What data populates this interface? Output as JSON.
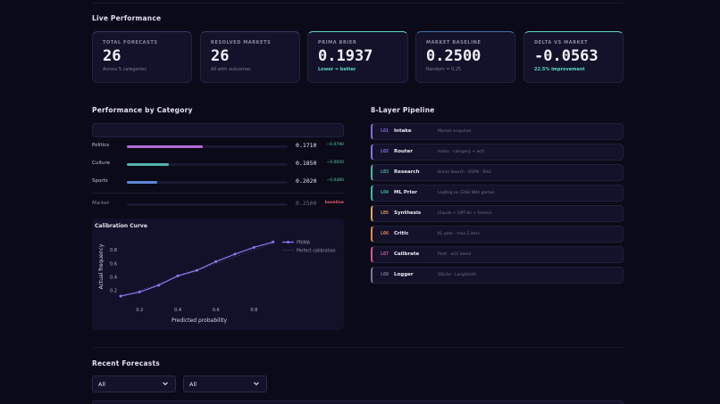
{
  "live": {
    "title": "Live Performance",
    "kpis": [
      {
        "label": "TOTAL FORECASTS",
        "value": "26",
        "sub": "Across 5 categories",
        "accent": "#3a3960"
      },
      {
        "label": "RESOLVED MARKETS",
        "value": "26",
        "sub": "All with outcomes",
        "accent": "#3a3960"
      },
      {
        "label": "PRIMA BRIER",
        "value": "0.1937",
        "sub": "Lower = better",
        "accent": "#5fd6c8"
      },
      {
        "label": "MARKET BASELINE",
        "value": "0.2500",
        "sub": "Random = 0.25",
        "accent": "#3d6fb0"
      },
      {
        "label": "DELTA VS MARKET",
        "value": "-0.0563",
        "sub": "22.5% improvement",
        "accent": "#5fd6c8"
      }
    ]
  },
  "category": {
    "title": "Performance by Category",
    "rows": [
      {
        "name": "Politics",
        "score": "0.1710",
        "delta": "−0.0790",
        "fill": 0.47,
        "color": "#b46ad6"
      },
      {
        "name": "Culture",
        "score": "0.1850",
        "delta": "−0.0650",
        "fill": 0.26,
        "color": "#4fb3a8"
      },
      {
        "name": "Sports",
        "score": "0.2020",
        "delta": "−0.0480",
        "fill": 0.19,
        "color": "#5b86d6"
      }
    ],
    "market": {
      "name": "Market",
      "score": "0.2500",
      "delta": "baseline"
    }
  },
  "calibration": {
    "title": "Calibration Curve",
    "xlabel": "Predicted probability",
    "ylabel": "Actual frequency",
    "legend": [
      "PRIMA",
      "Perfect calibration"
    ],
    "chart_data": {
      "type": "line",
      "x": [
        0.1,
        0.2,
        0.3,
        0.4,
        0.5,
        0.6,
        0.7,
        0.8,
        0.9
      ],
      "series": [
        {
          "name": "PRIMA",
          "values": [
            0.12,
            0.18,
            0.28,
            0.42,
            0.5,
            0.63,
            0.74,
            0.84,
            0.92
          ]
        },
        {
          "name": "Perfect calibration",
          "values": [
            0.1,
            0.2,
            0.3,
            0.4,
            0.5,
            0.6,
            0.7,
            0.8,
            0.9
          ]
        }
      ],
      "xticks": [
        "0.2",
        "0.4",
        "0.6",
        "0.8"
      ],
      "yticks": [
        "0.2",
        "0.4",
        "0.6",
        "0.8"
      ],
      "xlim": [
        0.1,
        0.92
      ],
      "ylim": [
        0.08,
        0.95
      ]
    }
  },
  "pipeline": {
    "title": "8-Layer Pipeline",
    "layers": [
      {
        "code": "L01",
        "name": "Intake",
        "desc": "Market snapshot",
        "color": "#8a6ad8"
      },
      {
        "code": "L02",
        "name": "Router",
        "desc": "Haiku · category + w(t)",
        "color": "#7a7ae0"
      },
      {
        "code": "L03",
        "name": "Research",
        "desc": "Brave Search · ESPN · RAG",
        "color": "#4fb3a8"
      },
      {
        "code": "L04",
        "name": "ML Prior",
        "desc": "LogReg on 126k NBA games",
        "color": "#3fbf9a"
      },
      {
        "code": "L05",
        "name": "Synthesis",
        "desc": "Claude + GPT-4o + Gemini",
        "color": "#e0a55a"
      },
      {
        "code": "L06",
        "name": "Critic",
        "desc": "KL gate · max 2 iters",
        "color": "#e08a4a"
      },
      {
        "code": "L07",
        "name": "Calibrate",
        "desc": "Platt · w(t) blend",
        "color": "#d6559a"
      },
      {
        "code": "L08",
        "name": "Logger",
        "desc": "SQLite · LangSmith",
        "color": "#7a7896"
      }
    ]
  },
  "recent": {
    "title": "Recent Forecasts",
    "filters": [
      {
        "value": "All"
      },
      {
        "value": "All"
      }
    ]
  }
}
